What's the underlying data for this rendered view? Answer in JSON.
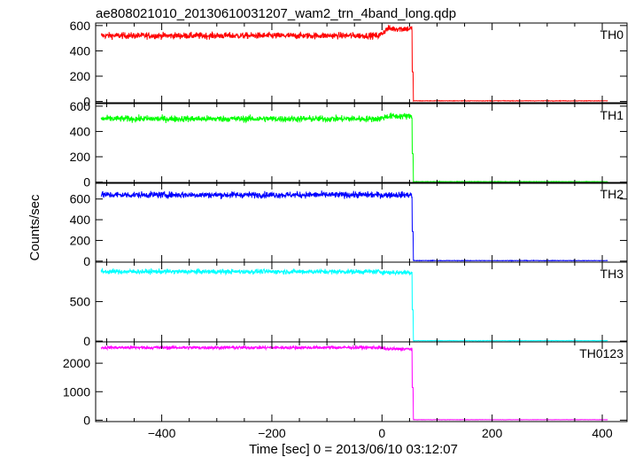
{
  "chart_data": {
    "type": "line",
    "title": "ae808021010_20130610031207_wam2_trn_4band_long.qdp",
    "xlabel": "Time [sec] 0 = 2013/06/10 03:12:07",
    "ylabel": "Counts/sec",
    "xlim": [
      -520,
      445
    ],
    "x_ticks": [
      -400,
      -200,
      0,
      200,
      400
    ],
    "grid": false,
    "panels": [
      {
        "name": "TH0",
        "color": "#ff0000",
        "ylim": [
          -10,
          620
        ],
        "ticks": [
          0,
          200,
          400,
          600
        ],
        "level_before": 520,
        "noise": 25,
        "bump_at": 5,
        "bump_level": 575,
        "drop_at": 55,
        "level_after": 5,
        "x_end": 410
      },
      {
        "name": "TH1",
        "color": "#00ff00",
        "ylim": [
          -10,
          620
        ],
        "ticks": [
          0,
          200,
          400,
          600
        ],
        "level_before": 500,
        "noise": 25,
        "bump_at": 5,
        "bump_level": 520,
        "drop_at": 55,
        "level_after": 3,
        "x_end": 410
      },
      {
        "name": "TH2",
        "color": "#0000ff",
        "ylim": [
          -10,
          760
        ],
        "ticks": [
          0,
          200,
          400,
          600
        ],
        "level_before": 640,
        "noise": 30,
        "bump_at": 5,
        "bump_level": 640,
        "drop_at": 55,
        "level_after": 5,
        "x_end": 410
      },
      {
        "name": "TH3",
        "color": "#00ffff",
        "ylim": [
          -10,
          1000
        ],
        "ticks": [
          0,
          500
        ],
        "level_before": 880,
        "noise": 30,
        "bump_at": 5,
        "bump_level": 870,
        "drop_at": 55,
        "level_after": 5,
        "x_end": 410
      },
      {
        "name": "TH0123",
        "color": "#ff00ff",
        "ylim": [
          -50,
          2750
        ],
        "ticks": [
          0,
          1000,
          2000
        ],
        "level_before": 2550,
        "noise": 60,
        "bump_at": 5,
        "bump_level": 2500,
        "drop_at": 55,
        "level_after": 15,
        "x_end": 410
      }
    ]
  }
}
